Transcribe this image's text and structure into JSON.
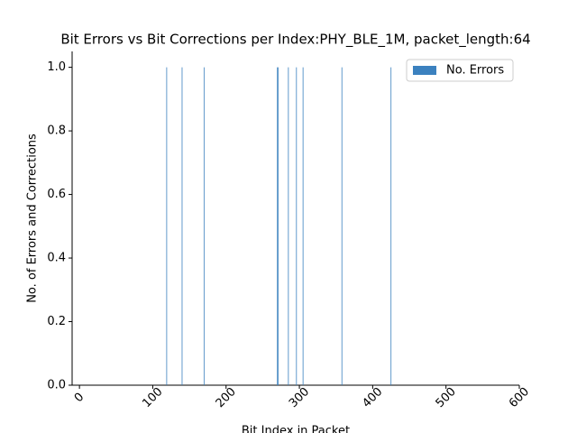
{
  "chart_data": {
    "type": "bar",
    "title": "Bit Errors vs Bit Corrections per Index:PHY_BLE_1M, packet_length:64",
    "x_label": "Bit Index in Packet",
    "y_label": "No. of Errors and Corrections",
    "x": [
      119,
      140,
      170,
      270,
      271,
      285,
      296,
      305,
      358,
      425
    ],
    "series": [
      {
        "name": "No. Errors",
        "color": "#3b81bf",
        "values": [
          1,
          1,
          1,
          1,
          1,
          1,
          1,
          1,
          1,
          1
        ]
      }
    ],
    "xlim": [
      -10,
      600
    ],
    "ylim": [
      0,
      1.05
    ],
    "xticks": [
      0,
      100,
      200,
      300,
      400,
      500,
      600
    ],
    "yticks": [
      {
        "value": 0,
        "label": "0.0"
      },
      {
        "value": 0.2,
        "label": "0.2"
      },
      {
        "value": 0.4,
        "label": "0.4"
      },
      {
        "value": 0.6,
        "label": "0.6"
      },
      {
        "value": 0.8,
        "label": "0.8"
      },
      {
        "value": 1,
        "label": "1.0"
      }
    ],
    "legend": "upper right"
  }
}
